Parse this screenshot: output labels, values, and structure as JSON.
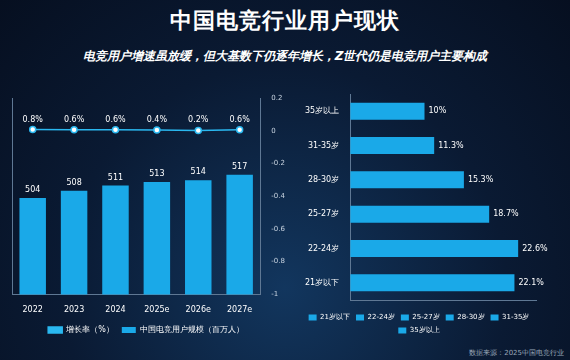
{
  "title": "中国电竞行业用户现状",
  "subtitle": "电竞用户增速虽放缓，但大基数下仍逐年增长，Z世代仍是电竞用户主要构成",
  "source": "数据来源：2025中国电竞行业",
  "chart_data": [
    {
      "type": "bar",
      "categories": [
        "2022",
        "2023",
        "2024",
        "2025e",
        "2026e",
        "2027e"
      ],
      "series": [
        {
          "name": "中国电竞用户规模（百万人）",
          "type": "bar",
          "color": "#1aa9e8",
          "values": [
            504,
            508,
            511,
            513,
            514,
            517
          ]
        },
        {
          "name": "增长率（%）",
          "type": "line",
          "color": "#2ab8f0",
          "marker": "circle",
          "axis": "y2",
          "values": [
            0.008,
            0.006,
            0.006,
            0.004,
            0.002,
            0.006
          ],
          "value_labels": [
            "0.8%",
            "0.6%",
            "0.6%",
            "0.4%",
            "0.2%",
            "0.6%"
          ]
        }
      ],
      "ylim": [
        450,
        560
      ],
      "y2lim": [
        -1,
        0.2
      ],
      "y2ticks": [
        -1,
        -0.8,
        -0.6,
        -0.4,
        -0.2,
        0,
        0.2
      ],
      "data_labels": true,
      "legend": "bottom",
      "grid": false
    },
    {
      "type": "bar",
      "orientation": "horizontal",
      "categories": [
        "35岁以上",
        "31-35岁",
        "28-30岁",
        "25-27岁",
        "22-24岁",
        "21岁以下"
      ],
      "values": [
        10,
        11.3,
        15.3,
        18.7,
        22.6,
        22.1
      ],
      "value_labels": [
        "10%",
        "11.3%",
        "15.3%",
        "18.7%",
        "22.6%",
        "22.1%"
      ],
      "color": "#1aa9e8",
      "xlim": [
        0,
        25
      ],
      "data_labels": true,
      "legend": "bottom",
      "tick_labels": "y",
      "grid": false
    }
  ]
}
